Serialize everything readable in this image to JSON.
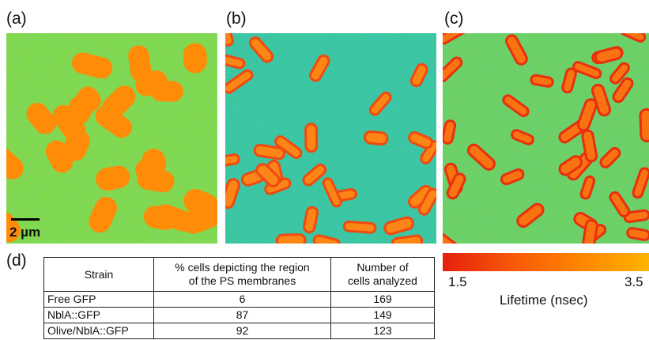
{
  "panels": [
    {
      "label": "(a)"
    },
    {
      "label": "(b)"
    },
    {
      "label": "(c)"
    }
  ],
  "scale_bar": "2 µm",
  "table": {
    "label": "(d)",
    "header": [
      [
        "Strain"
      ],
      [
        "% cells depicting  the region",
        "of the PS membranes"
      ],
      [
        "Number of",
        "cells analyzed"
      ]
    ],
    "rows": [
      [
        "Free GFP",
        "6",
        "169"
      ],
      [
        "NblA::GFP",
        "87",
        "149"
      ],
      [
        "Olive/NblA::GFP",
        "92",
        "123"
      ]
    ]
  },
  "colorbar": {
    "min": "1.5",
    "max": "3.5",
    "label": "Lifetime (nsec)"
  }
}
